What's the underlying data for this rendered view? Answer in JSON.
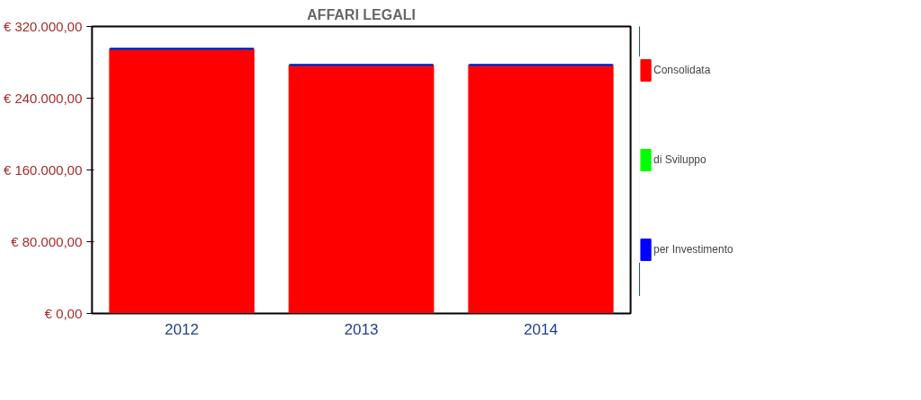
{
  "chart_data": {
    "type": "bar",
    "title": "AFFARI LEGALI",
    "stacked": true,
    "categories": [
      "2012",
      "2013",
      "2014"
    ],
    "series": [
      {
        "name": "Consolidata",
        "color": "#ff0000",
        "values": [
          295000,
          277000,
          277000
        ]
      },
      {
        "name": "di Sviluppo",
        "color": "#00ff00",
        "values": [
          0,
          0,
          0
        ]
      },
      {
        "name": "per Investimento",
        "color": "#0000ff",
        "values": [
          0,
          0,
          0
        ]
      }
    ],
    "ylim": [
      0,
      320000
    ],
    "yticks": [
      {
        "value": 0,
        "label": "€ 0,00"
      },
      {
        "value": 80000,
        "label": "€ 80.000,00"
      },
      {
        "value": 160000,
        "label": "€ 160.000,00"
      },
      {
        "value": 240000,
        "label": "€ 240.000,00"
      },
      {
        "value": 320000,
        "label": "€ 320.000,00"
      }
    ],
    "legend": "right",
    "grid": false
  }
}
